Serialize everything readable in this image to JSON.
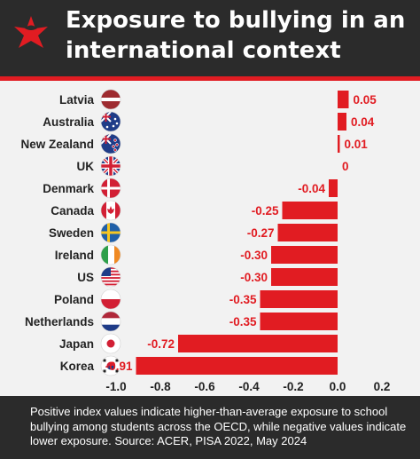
{
  "header": {
    "title": "Exposure to bullying in an international context",
    "logo_icon": "sbs-logo-icon"
  },
  "footer": {
    "note": "Positive index values indicate higher-than-average exposure to school bullying among students across the OECD, while negative values indicate lower exposure.  Source: ACER, PISA 2022, May 2024"
  },
  "colors": {
    "bar": "#e11c22",
    "header_bg": "#2b2b2b",
    "background": "#f2f2f2",
    "label": "#e11c22",
    "category_text": "#222222"
  },
  "chart_data": {
    "type": "bar",
    "orientation": "horizontal",
    "categories": [
      "Latvia",
      "Australia",
      "New Zealand",
      "UK",
      "Denmark",
      "Canada",
      "Sweden",
      "Ireland",
      "US",
      "Poland",
      "Netherlands",
      "Japan",
      "Korea"
    ],
    "values": [
      0.05,
      0.04,
      0.01,
      0,
      -0.04,
      -0.25,
      -0.27,
      -0.3,
      -0.3,
      -0.35,
      -0.35,
      -0.72,
      -0.91
    ],
    "data_labels": [
      "0.05",
      "0.04",
      "0.01",
      "0",
      "-0.04",
      "-0.25",
      "-0.27",
      "-0.30",
      "-0.30",
      "-0.35",
      "-0.35",
      "-0.72",
      "-0.91"
    ],
    "flag_icons": [
      "latvia-flag-icon",
      "australia-flag-icon",
      "new-zealand-flag-icon",
      "uk-flag-icon",
      "denmark-flag-icon",
      "canada-flag-icon",
      "sweden-flag-icon",
      "ireland-flag-icon",
      "us-flag-icon",
      "poland-flag-icon",
      "netherlands-flag-icon",
      "japan-flag-icon",
      "korea-flag-icon"
    ],
    "x_ticks": [
      -1.0,
      -0.8,
      -0.6,
      -0.4,
      -0.2,
      0.0,
      0.2
    ],
    "x_tick_labels": [
      "-1.0",
      "-0.8",
      "-0.6",
      "-0.4",
      "-0.2",
      "0.0",
      "0.2"
    ],
    "xlim": [
      -1.0,
      0.2
    ],
    "title": "",
    "xlabel": "",
    "ylabel": "",
    "grid": false,
    "legend": "none"
  }
}
